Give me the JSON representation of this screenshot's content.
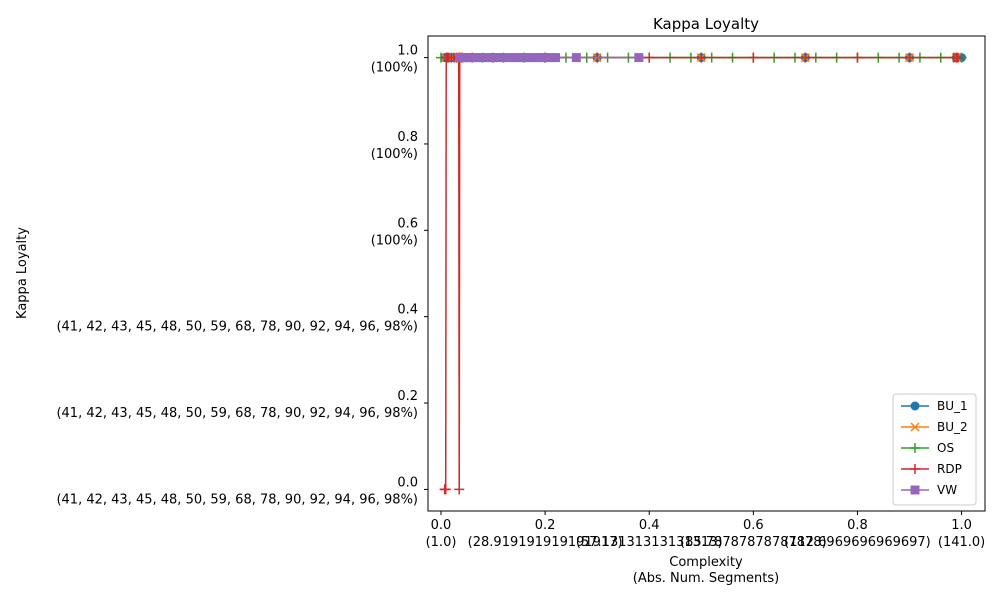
{
  "chart_data": {
    "type": "line",
    "title": "Kappa Loyalty",
    "xlabel_line1": "Complexity",
    "xlabel_line2": "(Abs. Num. Segments)",
    "ylabel": "Kappa Loyalty",
    "xlim": [
      -0.025,
      1.045
    ],
    "ylim": [
      -0.05,
      1.05
    ],
    "grid": false,
    "legend_position": "lower right",
    "x_ticks": [
      {
        "value": 0.0,
        "line1": "0.0",
        "line2": "(1.0)"
      },
      {
        "value": 0.2,
        "line1": "0.2",
        "line2": "(28.919191919191917)"
      },
      {
        "value": 0.4,
        "line1": "0.4",
        "line2": "(57.13131313131313)"
      },
      {
        "value": 0.6,
        "line1": "0.6",
        "line2": "(85.78787878787878)"
      },
      {
        "value": 0.8,
        "line1": "0.8",
        "line2": "(112.6969696969697)"
      },
      {
        "value": 1.0,
        "line1": "1.0",
        "line2": "(141.0)"
      }
    ],
    "y_ticks": [
      {
        "value": 0.0,
        "line1": "0.0",
        "line2": "(41, 42, 43, 45, 48, 50, 59, 68, 78, 90, 92, 94, 96, 98%)"
      },
      {
        "value": 0.2,
        "line1": "0.2",
        "line2": "(41, 42, 43, 45, 48, 50, 59, 68, 78, 90, 92, 94, 96, 98%)"
      },
      {
        "value": 0.4,
        "line1": "0.4",
        "line2": "(41, 42, 43, 45, 48, 50, 59, 68, 78, 90, 92, 94, 96, 98%)"
      },
      {
        "value": 0.6,
        "line1": "0.6",
        "line2": "(100%)"
      },
      {
        "value": 0.8,
        "line1": "0.8",
        "line2": "(100%)"
      },
      {
        "value": 1.0,
        "line1": "1.0",
        "line2": "(100%)"
      }
    ],
    "series": [
      {
        "name": "BU_1",
        "color": "#1f77b4",
        "marker": "circle",
        "x": [
          0.007,
          0.02,
          0.05,
          0.1,
          0.2,
          0.3,
          0.5,
          0.7,
          0.9,
          0.99,
          1.0
        ],
        "y": [
          1,
          1,
          1,
          1,
          1,
          1,
          1,
          1,
          1,
          1,
          1
        ]
      },
      {
        "name": "BU_2",
        "color": "#ff7f0e",
        "marker": "x",
        "x": [
          0.007,
          0.02,
          0.05,
          0.1,
          0.2,
          0.3,
          0.5,
          0.7,
          0.9,
          0.99
        ],
        "y": [
          1,
          1,
          1,
          1,
          1,
          1,
          1,
          1,
          1,
          1
        ]
      },
      {
        "name": "OS",
        "color": "#2ca02c",
        "marker": "plus",
        "x": [
          0.0,
          0.04,
          0.08,
          0.12,
          0.16,
          0.2,
          0.24,
          0.28,
          0.32,
          0.36,
          0.4,
          0.44,
          0.48,
          0.52,
          0.56,
          0.6,
          0.64,
          0.68,
          0.72,
          0.76,
          0.8,
          0.84,
          0.88,
          0.92,
          0.96,
          1.0
        ],
        "y": [
          1,
          1,
          1,
          1,
          1,
          1,
          1,
          1,
          1,
          1,
          1,
          1,
          1,
          1,
          1,
          1,
          1,
          1,
          1,
          1,
          1,
          1,
          1,
          1,
          1,
          1
        ]
      },
      {
        "name": "RDP",
        "color": "#d62728",
        "marker": "plus",
        "x": [
          0.007,
          0.008,
          0.009,
          0.01,
          0.012,
          0.015,
          0.02,
          0.025,
          0.03,
          0.034,
          0.035,
          0.036,
          0.04,
          0.06,
          0.1,
          0.2,
          0.3,
          0.4,
          0.5,
          0.6,
          0.7,
          0.8,
          0.9,
          0.985,
          0.99,
          0.993
        ],
        "y": [
          0.0,
          0.0,
          0.0,
          1,
          1,
          1,
          1,
          1,
          1,
          1,
          0.0,
          1,
          1,
          1,
          1,
          1,
          1,
          1,
          1,
          1,
          1,
          1,
          1,
          1,
          1,
          1
        ]
      },
      {
        "name": "VW",
        "color": "#9467bd",
        "marker": "square",
        "x": [
          0.036,
          0.04,
          0.045,
          0.05,
          0.06,
          0.07,
          0.08,
          0.09,
          0.1,
          0.11,
          0.12,
          0.13,
          0.14,
          0.15,
          0.16,
          0.17,
          0.18,
          0.19,
          0.2,
          0.21,
          0.22,
          0.26,
          0.38
        ],
        "y": [
          1,
          1,
          1,
          1,
          1,
          1,
          1,
          1,
          1,
          1,
          1,
          1,
          1,
          1,
          1,
          1,
          1,
          1,
          1,
          1,
          1,
          1,
          1
        ]
      }
    ]
  }
}
